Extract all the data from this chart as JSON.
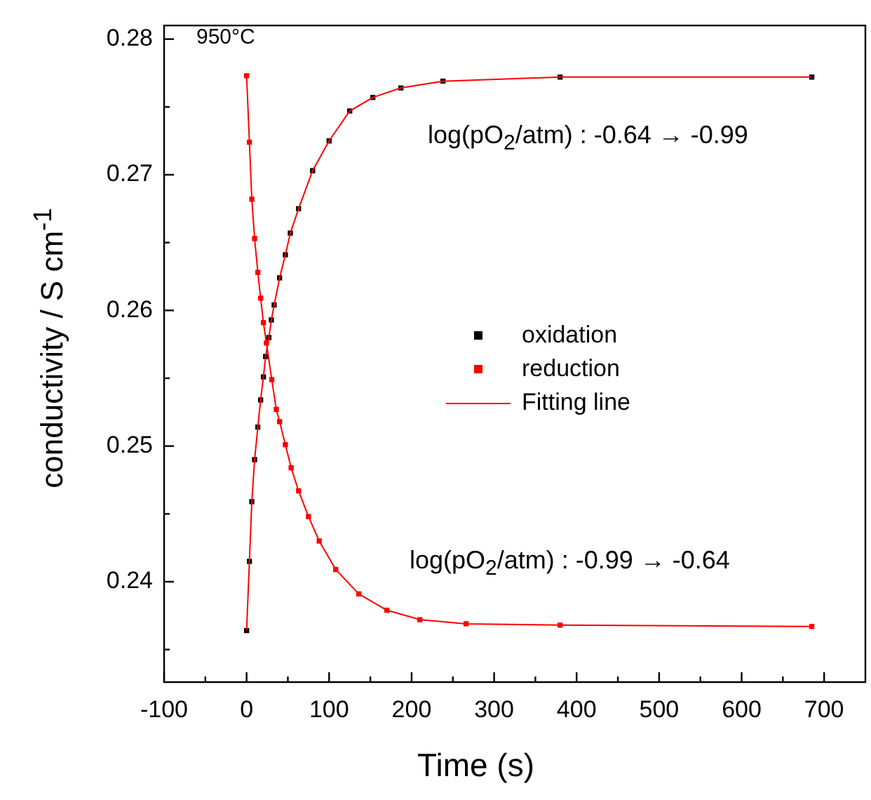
{
  "chart_data": {
    "type": "scatter",
    "xlabel": "Time (s)",
    "ylabel": "conductivity / S cm$^{-1}$",
    "xlim": [
      -100,
      750
    ],
    "ylim": [
      0.2326,
      0.281
    ],
    "xticks": [
      -100,
      {
        "value": -50,
        "label": null
      },
      0,
      {
        "value": 50,
        "label": null
      },
      100,
      {
        "value": 150,
        "label": null
      },
      200,
      {
        "value": 250,
        "label": null
      },
      300,
      {
        "value": 350,
        "label": null
      },
      400,
      {
        "value": 450,
        "label": null
      },
      500,
      {
        "value": 550,
        "label": null
      },
      600,
      {
        "value": 650,
        "label": null
      },
      700
    ],
    "yticks": [
      {
        "value": 0.235,
        "label": null
      },
      0.24,
      {
        "value": 0.245,
        "label": null
      },
      0.25,
      {
        "value": 0.255,
        "label": null
      },
      0.26,
      {
        "value": 0.265,
        "label": null
      },
      0.27,
      {
        "value": 0.275,
        "label": null
      },
      0.28
    ],
    "legend": "right",
    "grid": false,
    "annotations": [
      "950°C",
      "log(pO$_{2}$/atm) : -0.64 → -0.99",
      "log(pO$_{2}$/atm) : -0.99 → -0.64"
    ],
    "series": [
      {
        "name": "oxidation",
        "marker": "square",
        "color": "#000000",
        "x": [
          0,
          3.4,
          6.3,
          9.7,
          13.6,
          17,
          20.4,
          23,
          27,
          30,
          33.4,
          40,
          47,
          53,
          63,
          80,
          100,
          125,
          153,
          187,
          238,
          380,
          685
        ],
        "values": [
          0.2364,
          0.2415,
          0.2459,
          0.249,
          0.2514,
          0.2534,
          0.2551,
          0.2566,
          0.258,
          0.2593,
          0.2604,
          0.2624,
          0.2641,
          0.2657,
          0.2675,
          0.2703,
          0.2725,
          0.2747,
          0.2757,
          0.2764,
          0.2769,
          0.2772,
          0.2772
        ]
      },
      {
        "name": "reduction",
        "marker": "square",
        "color": "#ff0000",
        "x": [
          0,
          3.4,
          6.3,
          9.7,
          13.6,
          17,
          20.4,
          24,
          30.5,
          36,
          40,
          47,
          54,
          63,
          75,
          88,
          108,
          136,
          170,
          210,
          266,
          380,
          685
        ],
        "values": [
          0.2773,
          0.2724,
          0.2682,
          0.2653,
          0.2628,
          0.2609,
          0.2591,
          0.2576,
          0.2549,
          0.2527,
          0.2518,
          0.2501,
          0.2484,
          0.2467,
          0.2448,
          0.243,
          0.2409,
          0.2391,
          0.2379,
          0.2372,
          0.2369,
          0.2368,
          0.2367
        ]
      },
      {
        "name": "Fitting line",
        "type": "line",
        "marker": "none",
        "color": "#ff0000",
        "x": [
          0,
          3.4,
          6.3,
          9.7,
          13.6,
          17,
          20.4,
          23,
          27,
          30,
          33.4,
          40,
          47,
          53,
          63,
          80,
          100,
          125,
          153,
          187,
          238,
          380,
          685
        ],
        "values": [
          0.2364,
          0.2415,
          0.2459,
          0.249,
          0.2514,
          0.2534,
          0.2551,
          0.2566,
          0.258,
          0.2593,
          0.2604,
          0.2624,
          0.2641,
          0.2657,
          0.2675,
          0.2703,
          0.2725,
          0.2747,
          0.2757,
          0.2764,
          0.2769,
          0.2772,
          0.2772
        ]
      },
      {
        "type": "line",
        "marker": "none",
        "color": "#ff0000",
        "x": [
          0,
          3.4,
          6.3,
          9.7,
          13.6,
          17,
          20.4,
          24,
          30.5,
          36,
          40,
          47,
          54,
          63,
          75,
          88,
          108,
          136,
          170,
          210,
          266,
          380,
          685
        ],
        "values": [
          0.2773,
          0.2724,
          0.2682,
          0.2653,
          0.2628,
          0.2609,
          0.2591,
          0.2576,
          0.2549,
          0.2527,
          0.2518,
          0.2501,
          0.2484,
          0.2467,
          0.2448,
          0.243,
          0.2409,
          0.2391,
          0.2379,
          0.2372,
          0.2369,
          0.2368,
          0.2367
        ]
      }
    ]
  }
}
